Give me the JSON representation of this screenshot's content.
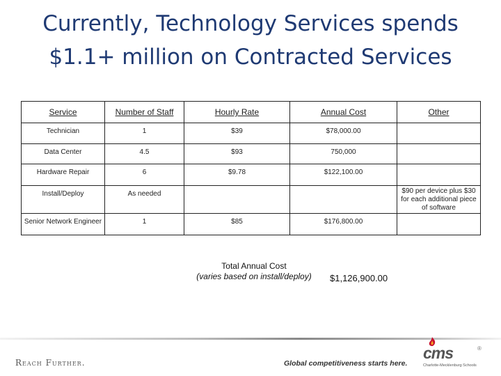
{
  "title": {
    "line1": "Currently, Technology Services spends",
    "line2": "$1.1+ million on Contracted Services"
  },
  "table": {
    "headers": [
      "Service",
      "Number  of Staff",
      "Hourly Rate",
      "Annual Cost",
      "Other"
    ],
    "rows": [
      {
        "service": "Technician",
        "staff": "1",
        "rate": "$39",
        "annual": "$78,000.00",
        "other": ""
      },
      {
        "service": "Data Center",
        "staff": "4.5",
        "rate": "$93",
        "annual": "750,000",
        "other": ""
      },
      {
        "service": "Hardware Repair",
        "staff": "6",
        "rate": "$9.78",
        "annual": "$122,100.00",
        "other": ""
      },
      {
        "service": "Install/Deploy",
        "staff": "As needed",
        "rate": "",
        "annual": "",
        "other": "$90 per device plus $30 for each additional piece of software"
      },
      {
        "service": "Senior Network Engineer",
        "staff": "1",
        "rate": "$85",
        "annual": "$176,800.00",
        "other": ""
      }
    ]
  },
  "total": {
    "label": "Total Annual Cost",
    "note": "(varies based on install/deploy)",
    "value": "$1,126,900.00"
  },
  "footer": {
    "reach": "Reach Further.",
    "tagline": "Global competitiveness starts here.",
    "logo_word": "cms",
    "logo_reg": "®",
    "logo_sub": "Charlotte-Mecklenburg Schools"
  },
  "colors": {
    "title": "#1f3a73",
    "logo_flame": "#c8102e"
  }
}
